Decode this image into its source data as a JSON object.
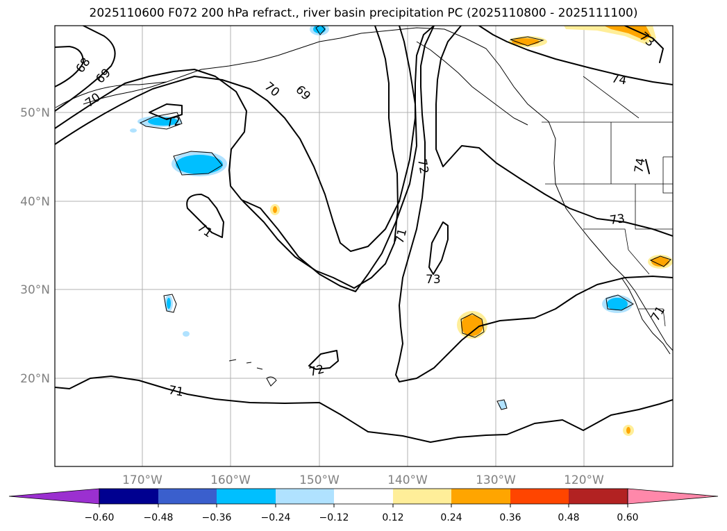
{
  "title": "2025110600 F072 200 hPa refract., river basin precipitation PC (2025110800 - 2025111100)",
  "axes": {
    "lon_labels": [
      "170°W",
      "160°W",
      "150°W",
      "140°W",
      "130°W",
      "120°W"
    ],
    "lat_labels": [
      "50°N",
      "40°N",
      "30°N",
      "20°N"
    ]
  },
  "contour_labels": [
    "68",
    "69",
    "70",
    "72",
    "70",
    "69",
    "74",
    "72",
    "71",
    "73",
    "73",
    "71",
    "72",
    "71",
    "74",
    "73",
    "71"
  ],
  "colorbar": {
    "ticks": [
      "−0.60",
      "−0.48",
      "−0.36",
      "−0.24",
      "−0.12",
      "0.12",
      "0.24",
      "0.36",
      "0.48",
      "0.60"
    ],
    "colors": [
      "#9b30d0",
      "#000090",
      "#3a5fcd",
      "#00bfff",
      "#b0e2ff",
      "#ffffff",
      "#ffee99",
      "#ffa500",
      "#ff4500",
      "#b22222",
      "#ff88aa"
    ]
  }
}
